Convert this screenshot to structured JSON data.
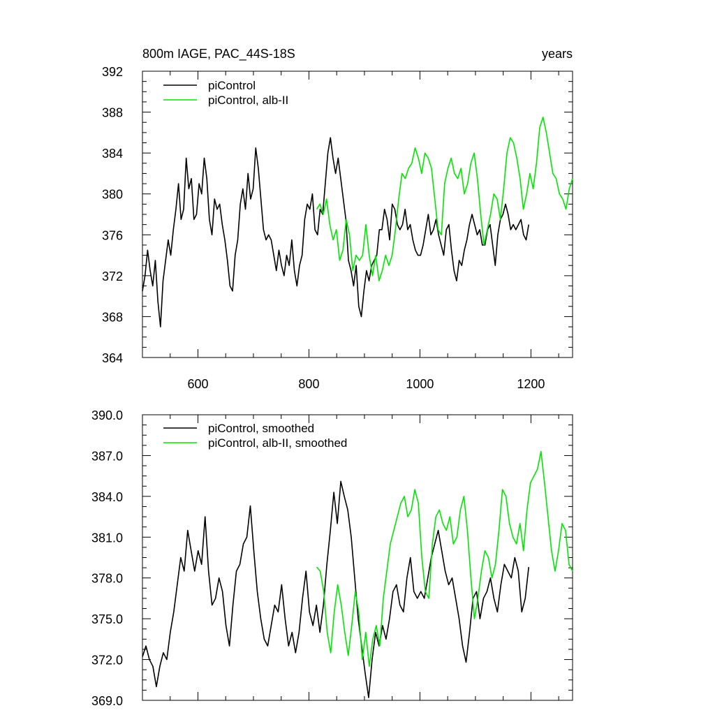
{
  "chart_data": [
    {
      "type": "line",
      "title_left": "800m IAGE, PAC_44S-18S",
      "title_right": "years",
      "xlim": [
        500,
        1275
      ],
      "ylim": [
        364,
        392
      ],
      "x_ticks": [
        600,
        800,
        1000,
        1200
      ],
      "y_ticks": [
        364,
        368,
        372,
        376,
        380,
        384,
        388,
        392
      ],
      "y_tick_labels": [
        "364",
        "368",
        "372",
        "376",
        "380",
        "384",
        "388",
        "392"
      ],
      "legend": [
        "piControl",
        "piControl, alb-II"
      ],
      "series": [
        {
          "name": "piControl",
          "color": "#000000",
          "x_start": 500,
          "x_end": 1196,
          "values": [
            370.5,
            372.0,
            374.5,
            372.5,
            371.0,
            373.5,
            369.5,
            367.0,
            371.5,
            373.5,
            375.5,
            374.0,
            376.5,
            378.5,
            381.0,
            377.5,
            378.5,
            383.5,
            380.5,
            381.5,
            377.5,
            378.0,
            381.0,
            380.0,
            383.5,
            381.5,
            377.5,
            376.0,
            379.5,
            378.5,
            379.0,
            377.0,
            375.5,
            373.5,
            371.0,
            370.5,
            374.0,
            375.5,
            379.0,
            380.5,
            378.5,
            382.0,
            379.5,
            380.5,
            384.5,
            382.5,
            379.5,
            376.5,
            375.5,
            376.0,
            375.5,
            374.0,
            372.5,
            374.5,
            373.0,
            372.0,
            374.0,
            373.0,
            375.5,
            372.5,
            371.0,
            373.0,
            374.0,
            377.5,
            379.0,
            378.5,
            380.0,
            376.5,
            376.0,
            378.5,
            378.0,
            381.0,
            384.0,
            385.5,
            383.5,
            382.0,
            383.5,
            381.5,
            379.5,
            377.5,
            373.5,
            372.5,
            371.0,
            373.0,
            369.0,
            368.0,
            370.5,
            372.5,
            371.5,
            373.0,
            373.5,
            374.0,
            376.5,
            376.5,
            378.5,
            377.5,
            375.5,
            379.0,
            378.5,
            377.0,
            376.5,
            377.0,
            378.5,
            376.5,
            377.0,
            375.5,
            374.5,
            374.0,
            374.0,
            375.0,
            376.5,
            378.0,
            376.0,
            376.5,
            377.5,
            376.0,
            375.0,
            374.0,
            376.5,
            377.0,
            374.5,
            372.5,
            371.5,
            373.5,
            373.0,
            374.5,
            375.5,
            377.0,
            378.0,
            377.0,
            376.0,
            376.5,
            375.0,
            375.0,
            376.5,
            377.0,
            375.0,
            373.0,
            376.0,
            377.5,
            378.0,
            379.0,
            378.0,
            376.5,
            377.0,
            376.5,
            377.0,
            377.5,
            376.0,
            375.5,
            377.0
          ]
        },
        {
          "name": "piControl, alb-II",
          "color": "#00e600",
          "x_start": 814,
          "x_end": 1275,
          "values": [
            378.5,
            379.0,
            378.0,
            379.5,
            377.0,
            375.5,
            376.5,
            373.5,
            374.5,
            377.5,
            376.0,
            372.5,
            374.0,
            373.5,
            374.0,
            377.0,
            374.0,
            372.0,
            374.0,
            371.5,
            372.5,
            374.0,
            373.0,
            374.0,
            376.5,
            379.5,
            382.0,
            381.5,
            382.5,
            383.0,
            384.5,
            383.5,
            382.0,
            384.0,
            383.5,
            382.5,
            379.5,
            376.5,
            376.0,
            381.0,
            382.5,
            383.5,
            382.0,
            381.5,
            382.5,
            380.0,
            381.0,
            383.0,
            384.0,
            381.5,
            378.0,
            375.0,
            376.5,
            378.0,
            380.0,
            379.5,
            377.5,
            380.5,
            384.0,
            385.5,
            385.0,
            383.5,
            381.5,
            378.5,
            380.0,
            382.0,
            380.5,
            383.0,
            386.5,
            387.5,
            386.0,
            384.0,
            382.0,
            381.5,
            380.0,
            379.5,
            378.5,
            380.5,
            381.5
          ]
        }
      ]
    },
    {
      "type": "line",
      "xlim": [
        500,
        1275
      ],
      "ylim": [
        369,
        390
      ],
      "x_ticks": [
        600,
        800,
        1000,
        1200
      ],
      "y_ticks": [
        369,
        372,
        375,
        378,
        381,
        384,
        387,
        390
      ],
      "y_tick_labels": [
        "369.0",
        "372.0",
        "375.0",
        "378.0",
        "381.0",
        "384.0",
        "387.0",
        "390.0"
      ],
      "legend": [
        "piControl, smoothed",
        "piControl, alb-II, smoothed"
      ],
      "series": [
        {
          "name": "piControl, smoothed",
          "color": "#000000",
          "x_start": 500,
          "x_end": 1196,
          "values": [
            372.2,
            373.0,
            372.0,
            371.5,
            370.0,
            371.5,
            372.5,
            372.0,
            374.0,
            375.5,
            377.5,
            379.5,
            378.5,
            381.5,
            380.0,
            378.5,
            380.0,
            379.0,
            382.5,
            378.5,
            376.0,
            376.5,
            378.0,
            377.0,
            374.5,
            373.0,
            376.0,
            378.5,
            379.0,
            380.5,
            381.0,
            383.3,
            380.0,
            377.0,
            375.0,
            373.5,
            373.0,
            374.5,
            376.0,
            375.5,
            377.5,
            375.0,
            373.0,
            374.0,
            372.5,
            374.0,
            376.5,
            378.5,
            375.5,
            374.5,
            376.0,
            374.0,
            376.0,
            379.0,
            381.5,
            384.3,
            382.0,
            385.1,
            384.0,
            383.0,
            381.0,
            378.0,
            375.0,
            373.0,
            371.0,
            369.2,
            372.0,
            374.0,
            373.0,
            374.5,
            373.5,
            375.0,
            377.0,
            377.5,
            376.0,
            375.5,
            378.0,
            379.5,
            377.0,
            376.5,
            377.0,
            376.5,
            378.0,
            379.5,
            380.5,
            381.5,
            380.0,
            378.5,
            377.5,
            378.0,
            376.5,
            375.0,
            373.0,
            371.8,
            374.0,
            376.5,
            377.0,
            375.0,
            376.5,
            377.0,
            378.0,
            376.5,
            375.5,
            377.5,
            379.0,
            378.5,
            378.0,
            379.5,
            378.5,
            375.5,
            376.5,
            378.8
          ]
        },
        {
          "name": "piControl, alb-II, smoothed",
          "color": "#00e600",
          "x_start": 814,
          "x_end": 1275,
          "values": [
            378.8,
            378.5,
            377.0,
            374.0,
            372.5,
            375.5,
            377.5,
            376.0,
            374.0,
            372.3,
            374.5,
            377.0,
            375.5,
            372.0,
            374.0,
            371.5,
            373.5,
            374.5,
            373.0,
            376.5,
            378.5,
            380.5,
            381.5,
            382.5,
            383.5,
            384.0,
            382.5,
            383.0,
            384.5,
            383.5,
            379.5,
            377.0,
            376.5,
            380.5,
            382.5,
            383.0,
            382.0,
            381.5,
            382.5,
            380.5,
            381.0,
            383.0,
            384.0,
            381.5,
            378.0,
            375.0,
            376.5,
            378.5,
            380.0,
            379.5,
            378.0,
            379.0,
            381.5,
            384.5,
            384.0,
            382.0,
            381.0,
            380.5,
            382.0,
            380.0,
            383.0,
            385.0,
            385.5,
            386.0,
            387.3,
            385.0,
            382.5,
            380.0,
            378.5,
            380.0,
            382.0,
            381.5,
            379.0,
            378.5
          ]
        }
      ]
    }
  ]
}
